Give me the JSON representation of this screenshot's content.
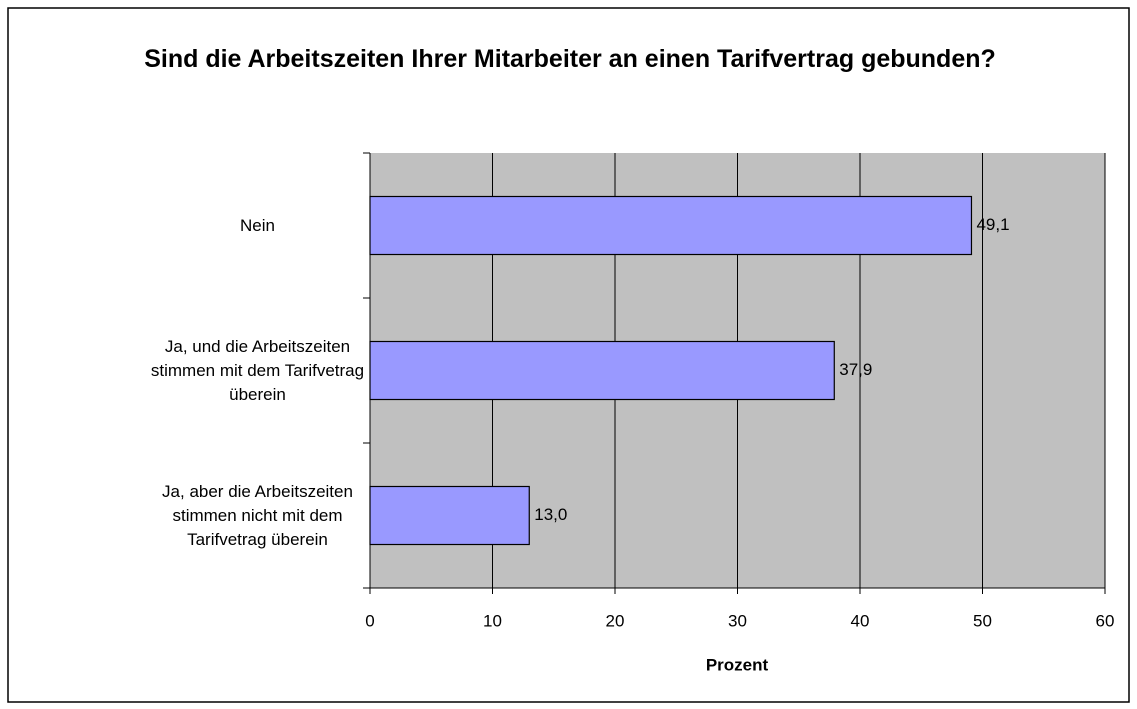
{
  "chart_data": {
    "type": "bar",
    "orientation": "horizontal",
    "title": "Sind die Arbeitszeiten Ihrer Mitarbeiter an einen Tarifvertrag gebunden?",
    "categories": [
      "Nein",
      "Ja, und die Arbeitszeiten stimmen mit dem Tarifvetrag überein",
      "Ja, aber die Arbeitszeiten stimmen nicht mit dem Tarifvetrag überein"
    ],
    "values": [
      49.1,
      37.9,
      13.0
    ],
    "value_labels": [
      "49,1",
      "37,9",
      "13,0"
    ],
    "color": "#9999ff",
    "xlabel": "Prozent",
    "xlim": [
      0,
      60
    ],
    "xticks": [
      0,
      10,
      20,
      30,
      40,
      50,
      60
    ],
    "grid": true
  }
}
